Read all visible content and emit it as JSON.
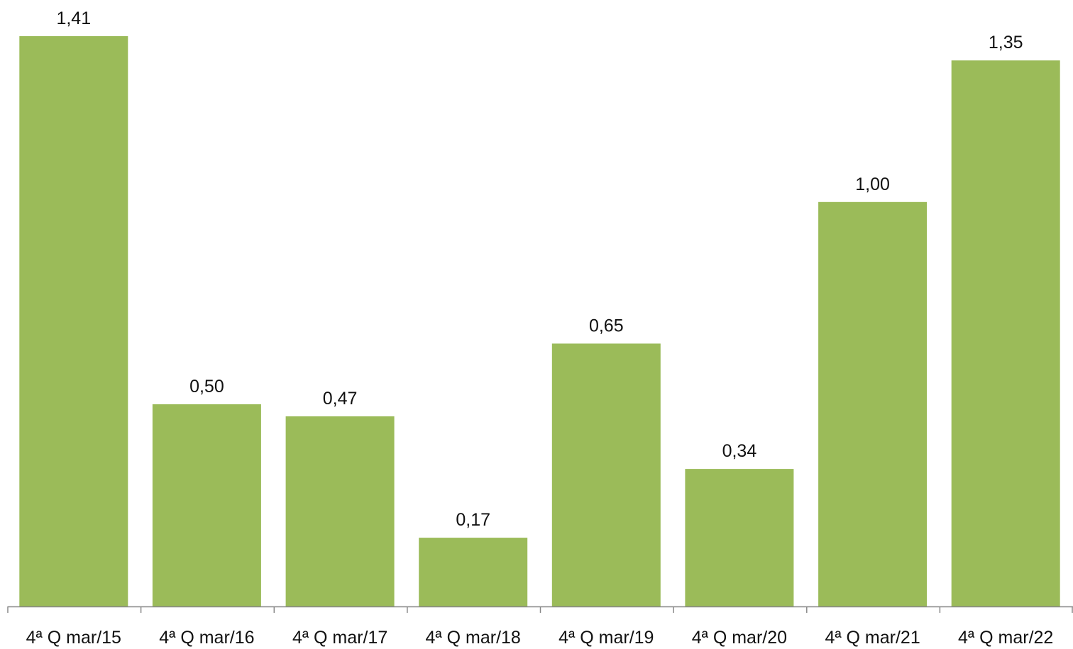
{
  "chart_data": {
    "type": "bar",
    "title": "",
    "xlabel": "",
    "ylabel": "",
    "categories": [
      "4ª Q mar/15",
      "4ª Q mar/16",
      "4ª Q mar/17",
      "4ª Q mar/18",
      "4ª Q mar/19",
      "4ª Q mar/20",
      "4ª Q mar/21",
      "4ª Q mar/22"
    ],
    "values": [
      1.41,
      0.5,
      0.47,
      0.17,
      0.65,
      0.34,
      1.0,
      1.35
    ],
    "data_labels": [
      "1,41",
      "0,50",
      "0,47",
      "0,17",
      "0,65",
      "0,34",
      "1,00",
      "1,35"
    ],
    "ylim": [
      0,
      1.41
    ],
    "grid": false,
    "legend": "none",
    "colors": {
      "bar": "#9BBB59",
      "axis": "#888888",
      "text": "#111111"
    }
  }
}
